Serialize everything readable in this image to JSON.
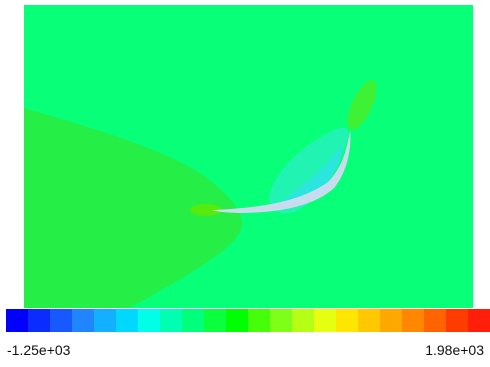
{
  "legend": {
    "min_label": "-1.25e+03",
    "max_label": "1.98e+03",
    "colors": [
      "#0000ff",
      "#0a2cff",
      "#1759ff",
      "#1f86ff",
      "#13b0ff",
      "#00d8ff",
      "#00ffe6",
      "#00ffb0",
      "#00ff7a",
      "#0aff3c",
      "#00ff00",
      "#45ff0a",
      "#7dff17",
      "#b5ff15",
      "#e6ff10",
      "#ffe600",
      "#ffc800",
      "#ffa800",
      "#ff8800",
      "#ff6400",
      "#ff3c00",
      "#ff1e0a"
    ]
  },
  "field": {
    "background_color": "#08ff78",
    "wake_color": "#25ee47",
    "leading_edge_color": "#56ea0d",
    "suction_region_color": "#21f3b3",
    "suction_core_color": "#2ae6de",
    "airfoil_color": "#c9dcef",
    "tip_color": "#3ef134"
  }
}
